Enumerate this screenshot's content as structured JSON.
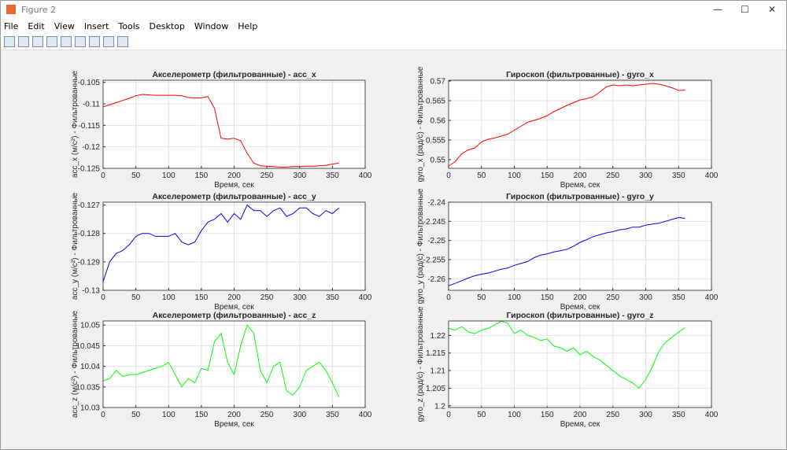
{
  "window": {
    "title": "Figure 2",
    "menu": [
      "File",
      "Edit",
      "View",
      "Insert",
      "Tools",
      "Desktop",
      "Window",
      "Help"
    ]
  },
  "chart_data": [
    {
      "type": "line",
      "title": "Акселерометр (фильтрованные) - acc_x",
      "x_label": "Время, сек",
      "y_label": "acc_x (м/с²) - Фильтрованные",
      "color": "#ff0000",
      "grid": true,
      "x": [
        0,
        10,
        20,
        30,
        40,
        50,
        60,
        70,
        80,
        90,
        100,
        110,
        120,
        130,
        140,
        150,
        160,
        170,
        180,
        190,
        200,
        210,
        220,
        230,
        240,
        250,
        260,
        270,
        280,
        290,
        300,
        310,
        320,
        330,
        340,
        350,
        360
      ],
      "values": [
        -0.1107,
        -0.1102,
        -0.1097,
        -0.1092,
        -0.1087,
        -0.1081,
        -0.1078,
        -0.1079,
        -0.108,
        -0.108,
        -0.108,
        -0.108,
        -0.1081,
        -0.1085,
        -0.1086,
        -0.1086,
        -0.1083,
        -0.111,
        -0.118,
        -0.1182,
        -0.118,
        -0.1186,
        -0.1215,
        -0.1238,
        -0.1244,
        -0.1245,
        -0.1246,
        -0.1247,
        -0.1247,
        -0.1246,
        -0.1246,
        -0.1245,
        -0.1245,
        -0.1244,
        -0.1243,
        -0.124,
        -0.1238
      ],
      "xlim": [
        0,
        400
      ],
      "xticks": [
        0,
        50,
        100,
        150,
        200,
        250,
        300,
        350,
        400
      ],
      "ylim": [
        -0.125,
        -0.1045
      ],
      "yticks": [
        -0.125,
        -0.12,
        -0.115,
        -0.11,
        -0.105
      ]
    },
    {
      "type": "line",
      "title": "Гироскоп (фильтрованные) - gyro_x",
      "x_label": "Время, сек",
      "y_label": "gyro_x (рад/с) - Фильтрованные",
      "color": "#ff0000",
      "grid": true,
      "x": [
        0,
        10,
        20,
        30,
        40,
        50,
        60,
        70,
        80,
        90,
        100,
        110,
        120,
        130,
        140,
        150,
        160,
        170,
        180,
        190,
        200,
        210,
        220,
        230,
        240,
        250,
        260,
        270,
        280,
        290,
        300,
        310,
        320,
        330,
        340,
        350,
        360
      ],
      "values": [
        0.5484,
        0.5495,
        0.5515,
        0.5525,
        0.553,
        0.5545,
        0.5552,
        0.5555,
        0.556,
        0.5565,
        0.5575,
        0.5585,
        0.5595,
        0.56,
        0.5605,
        0.5612,
        0.5622,
        0.563,
        0.5638,
        0.5645,
        0.5652,
        0.5655,
        0.566,
        0.5672,
        0.5685,
        0.569,
        0.5688,
        0.569,
        0.5688,
        0.569,
        0.5692,
        0.5694,
        0.5692,
        0.5688,
        0.5683,
        0.5676,
        0.5677
      ],
      "xlim": [
        0,
        400
      ],
      "xticks": [
        0,
        50,
        100,
        150,
        200,
        250,
        300,
        350,
        400
      ],
      "ylim": [
        0.5478,
        0.5702
      ],
      "yticks": [
        0.55,
        0.555,
        0.56,
        0.565,
        0.57
      ]
    },
    {
      "type": "line",
      "title": "Акселерометр (фильтрованные) - acc_y",
      "x_label": "Время, сек",
      "y_label": "acc_y (м/с²) - Фильтрованные",
      "color": "#0000ff",
      "grid": true,
      "x": [
        0,
        10,
        20,
        30,
        40,
        50,
        60,
        70,
        80,
        90,
        100,
        110,
        120,
        130,
        140,
        150,
        160,
        170,
        180,
        190,
        200,
        210,
        220,
        230,
        240,
        250,
        260,
        270,
        280,
        290,
        300,
        310,
        320,
        330,
        340,
        350,
        360
      ],
      "values": [
        -0.1297,
        -0.129,
        -0.1287,
        -0.1286,
        -0.1284,
        -0.1281,
        -0.128,
        -0.128,
        -0.1281,
        -0.1281,
        -0.1281,
        -0.128,
        -0.1283,
        -0.1284,
        -0.1283,
        -0.1279,
        -0.1276,
        -0.1275,
        -0.1273,
        -0.1276,
        -0.1273,
        -0.1275,
        -0.127,
        -0.1272,
        -0.1272,
        -0.1274,
        -0.1272,
        -0.1271,
        -0.1274,
        -0.1273,
        -0.1271,
        -0.1271,
        -0.1273,
        -0.1274,
        -0.1272,
        -0.1273,
        -0.1271
      ],
      "xlim": [
        0,
        400
      ],
      "xticks": [
        0,
        50,
        100,
        150,
        200,
        250,
        300,
        350,
        400
      ],
      "ylim": [
        -0.13,
        -0.1269
      ],
      "yticks": [
        -0.13,
        -0.129,
        -0.128,
        -0.127
      ]
    },
    {
      "type": "line",
      "title": "Гироскоп (фильтрованные) - gyro_y",
      "x_label": "Время, сек",
      "y_label": "gyro_y (рад/с) - Фильтрованные",
      "color": "#0000ff",
      "grid": true,
      "x": [
        0,
        10,
        20,
        30,
        40,
        50,
        60,
        70,
        80,
        90,
        100,
        110,
        120,
        130,
        140,
        150,
        160,
        170,
        180,
        190,
        200,
        210,
        220,
        230,
        240,
        250,
        260,
        270,
        280,
        290,
        300,
        310,
        320,
        330,
        340,
        350,
        360
      ],
      "values": [
        -2.2618,
        -2.2612,
        -2.2605,
        -2.2598,
        -2.2592,
        -2.2588,
        -2.2585,
        -2.258,
        -2.2575,
        -2.2572,
        -2.2565,
        -2.256,
        -2.2555,
        -2.2545,
        -2.2538,
        -2.2535,
        -2.253,
        -2.2527,
        -2.2523,
        -2.2515,
        -2.2505,
        -2.2498,
        -2.249,
        -2.2485,
        -2.248,
        -2.2477,
        -2.2472,
        -2.247,
        -2.2465,
        -2.2465,
        -2.246,
        -2.2457,
        -2.2455,
        -2.245,
        -2.2445,
        -2.244,
        -2.2442
      ],
      "xlim": [
        0,
        400
      ],
      "xticks": [
        0,
        50,
        100,
        150,
        200,
        250,
        300,
        350,
        400
      ],
      "ylim": [
        -2.263,
        -2.24
      ],
      "yticks": [
        -2.26,
        -2.255,
        -2.25,
        -2.245,
        -2.24
      ]
    },
    {
      "type": "line",
      "title": "Акселерометр (фильтрованные) - acc_z",
      "x_label": "Время, сек",
      "y_label": "acc_z (м/с²) - Фильтрованные",
      "color": "#00ff00",
      "grid": true,
      "x": [
        0,
        10,
        20,
        30,
        40,
        50,
        60,
        70,
        80,
        90,
        100,
        110,
        120,
        130,
        140,
        150,
        160,
        170,
        180,
        190,
        200,
        210,
        220,
        230,
        240,
        250,
        260,
        270,
        280,
        290,
        300,
        310,
        320,
        330,
        340,
        350,
        360
      ],
      "values": [
        10.0365,
        10.037,
        10.039,
        10.0375,
        10.038,
        10.038,
        10.0385,
        10.039,
        10.0395,
        10.04,
        10.041,
        10.038,
        10.035,
        10.037,
        10.036,
        10.0395,
        10.039,
        10.046,
        10.048,
        10.041,
        10.038,
        10.045,
        10.05,
        10.048,
        10.039,
        10.036,
        10.04,
        10.041,
        10.034,
        10.033,
        10.035,
        10.039,
        10.04,
        10.041,
        10.039,
        10.036,
        10.0325
      ],
      "xlim": [
        0,
        400
      ],
      "xticks": [
        0,
        50,
        100,
        150,
        200,
        250,
        300,
        350,
        400
      ],
      "ylim": [
        10.03,
        10.051
      ],
      "yticks": [
        10.03,
        10.035,
        10.04,
        10.045,
        10.05
      ]
    },
    {
      "type": "line",
      "title": "Гироскоп (фильтрованные) - gyro_z",
      "x_label": "Время, сек",
      "y_label": "gyro_z (рад/с) - Фильтрованные",
      "color": "#00ff00",
      "grid": true,
      "x": [
        0,
        10,
        20,
        30,
        40,
        50,
        60,
        70,
        80,
        90,
        100,
        110,
        120,
        130,
        140,
        150,
        160,
        170,
        180,
        190,
        200,
        210,
        220,
        230,
        240,
        250,
        260,
        270,
        280,
        290,
        300,
        310,
        320,
        330,
        340,
        350,
        360
      ],
      "values": [
        1.222,
        1.2215,
        1.2225,
        1.221,
        1.2205,
        1.2215,
        1.222,
        1.223,
        1.224,
        1.2235,
        1.2205,
        1.2215,
        1.22,
        1.2195,
        1.2185,
        1.219,
        1.217,
        1.2165,
        1.2155,
        1.2165,
        1.2145,
        1.2155,
        1.214,
        1.213,
        1.2115,
        1.21,
        1.2085,
        1.2075,
        1.2065,
        1.205,
        1.2075,
        1.211,
        1.2155,
        1.218,
        1.2195,
        1.221,
        1.2222
      ],
      "xlim": [
        0,
        400
      ],
      "xticks": [
        0,
        50,
        100,
        150,
        200,
        250,
        300,
        350,
        400
      ],
      "ylim": [
        1.1995,
        1.2241
      ],
      "yticks": [
        1.2,
        1.205,
        1.21,
        1.215,
        1.22
      ]
    }
  ]
}
